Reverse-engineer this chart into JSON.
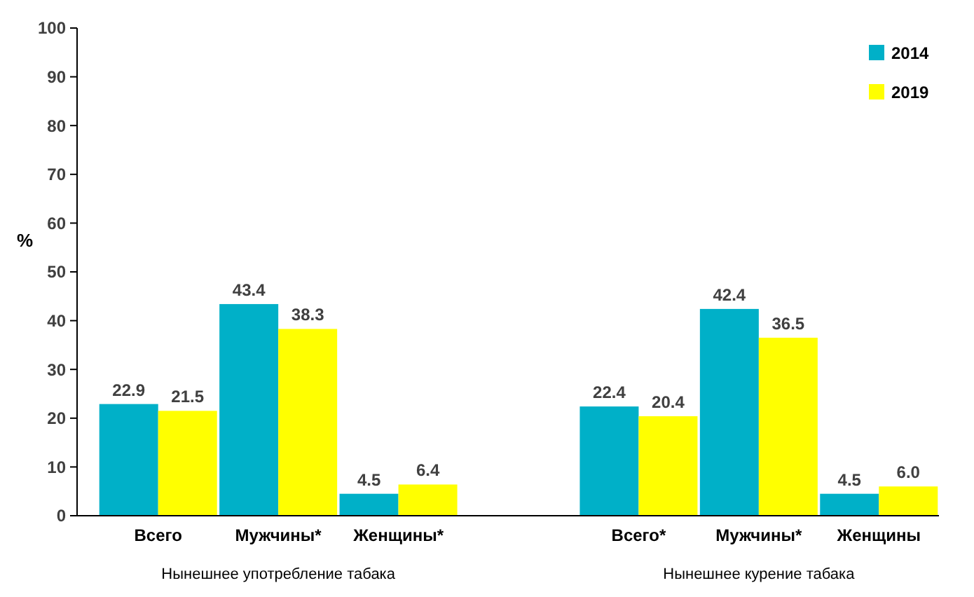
{
  "chart_data": {
    "type": "bar",
    "ylabel": "%",
    "categories": [
      "Всего",
      "Мужчины*",
      "Женщины*",
      null,
      "Всего*",
      "Мужчины*",
      "Женщины"
    ],
    "series": [
      {
        "name": "2014",
        "color": "#00b0c8",
        "values": [
          22.9,
          43.4,
          4.5,
          null,
          22.4,
          42.4,
          4.5
        ]
      },
      {
        "name": "2019",
        "color": "#ffff00",
        "values": [
          21.5,
          38.3,
          6.4,
          null,
          20.4,
          36.5,
          6.0
        ],
        "value_labels": [
          "21.5",
          "38.3",
          "6.4",
          null,
          "20.4",
          "36.5",
          "6.0"
        ]
      }
    ],
    "ylim": [
      0,
      100
    ],
    "yticks": [
      0,
      10,
      20,
      30,
      40,
      50,
      60,
      70,
      80,
      90,
      100
    ],
    "grid": false,
    "legend": "top right",
    "data_labels": true,
    "annotations": [
      "Нынешнее употребление табака",
      "Нынешнее курение табака"
    ]
  }
}
